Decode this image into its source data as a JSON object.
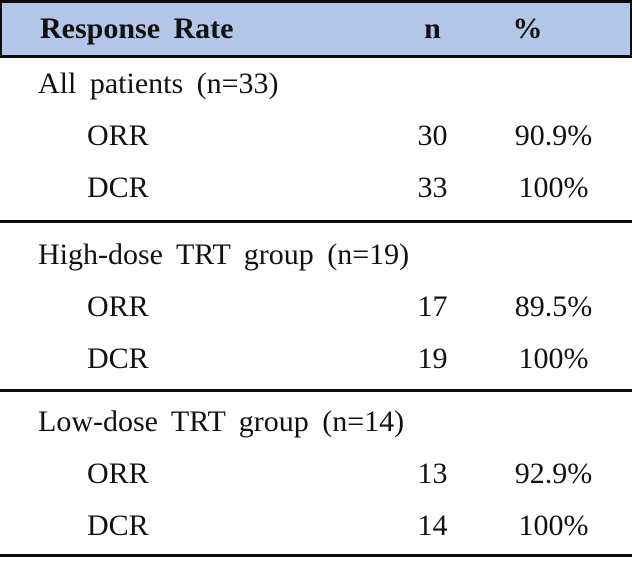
{
  "table": {
    "header": {
      "col1": "Response Rate",
      "col2": "n",
      "col3": "%"
    },
    "sections": [
      {
        "label": "All patients (n=33)",
        "rows": [
          {
            "name": "ORR",
            "n": "30",
            "pct": "90.9%"
          },
          {
            "name": "DCR",
            "n": "33",
            "pct": "100%"
          }
        ]
      },
      {
        "label": "High-dose TRT group (n=19)",
        "rows": [
          {
            "name": "ORR",
            "n": "17",
            "pct": "89.5%"
          },
          {
            "name": "DCR",
            "n": "19",
            "pct": "100%"
          }
        ]
      },
      {
        "label": "Low-dose TRT group (n=14)",
        "rows": [
          {
            "name": "ORR",
            "n": "13",
            "pct": "92.9%"
          },
          {
            "name": "DCR",
            "n": "14",
            "pct": "100%"
          }
        ]
      }
    ],
    "colors": {
      "header_bg": "#b4c6e7",
      "rule": "#0d0d0d"
    }
  }
}
